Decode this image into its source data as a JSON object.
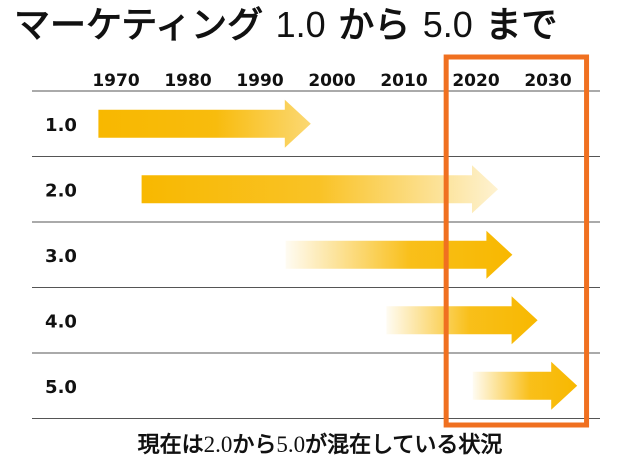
{
  "title": {
    "part1": "マーケティング ",
    "num1": "1.0",
    "part2": " から ",
    "num2": "5.0",
    "part3": " まで"
  },
  "footer": {
    "part1": "現在は",
    "num1": "2.0",
    "part2": "から",
    "num2": "5.0",
    "part3": "が混在している状況"
  },
  "timeline": {
    "years": [
      "1970",
      "1980",
      "1990",
      "2000",
      "2010",
      "2020",
      "2030"
    ],
    "rows": [
      {
        "label": "1.0",
        "start": 1969.5,
        "end": 1999.0
      },
      {
        "label": "2.0",
        "start": 1975.5,
        "end": 2025.0
      },
      {
        "label": "3.0",
        "start": 1995.5,
        "end": 2027.0
      },
      {
        "label": "4.0",
        "start": 2009.5,
        "end": 2030.5
      },
      {
        "label": "5.0",
        "start": 2021.5,
        "end": 2036.0
      }
    ],
    "highlight": {
      "start": 2017.8,
      "end": 2037.3
    }
  },
  "colors": {
    "arrow": "#f8b800",
    "highlight_border": "#f07020",
    "grid": "#555555",
    "text": "#111111"
  }
}
